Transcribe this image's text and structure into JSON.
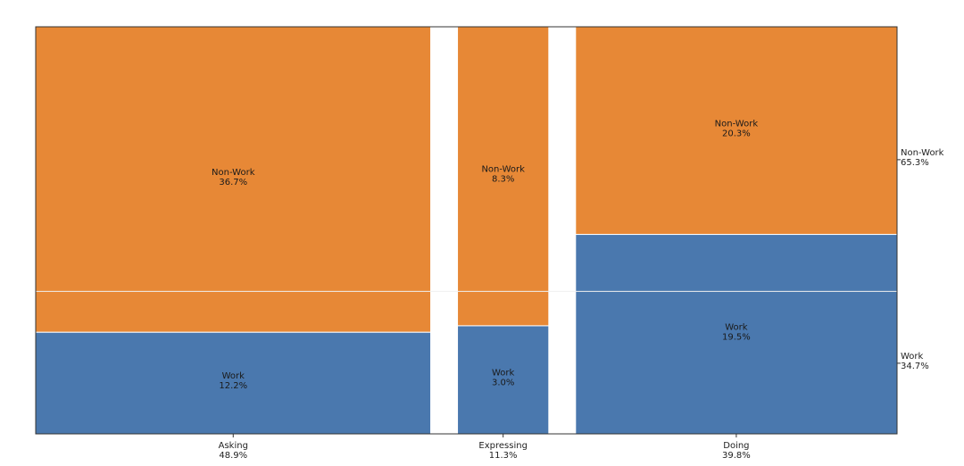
{
  "chart_data": {
    "type": "mosaic",
    "title": "",
    "categories": [
      {
        "name": "Asking",
        "share": "48.9%"
      },
      {
        "name": "Expressing",
        "share": "11.3%"
      },
      {
        "name": "Doing",
        "share": "39.8%"
      }
    ],
    "series": [
      {
        "name": "Work",
        "total": "34.7%",
        "color": "#4a78ae",
        "values": [
          12.2,
          3.0,
          19.5
        ],
        "labels": [
          "12.2%",
          "3.0%",
          "19.5%"
        ]
      },
      {
        "name": "Non-Work",
        "total": "65.3%",
        "color": "#e78836",
        "values": [
          36.7,
          8.3,
          20.3
        ],
        "labels": [
          "36.7%",
          "8.3%",
          "20.3%"
        ]
      }
    ],
    "grid": false,
    "legend": "right"
  }
}
